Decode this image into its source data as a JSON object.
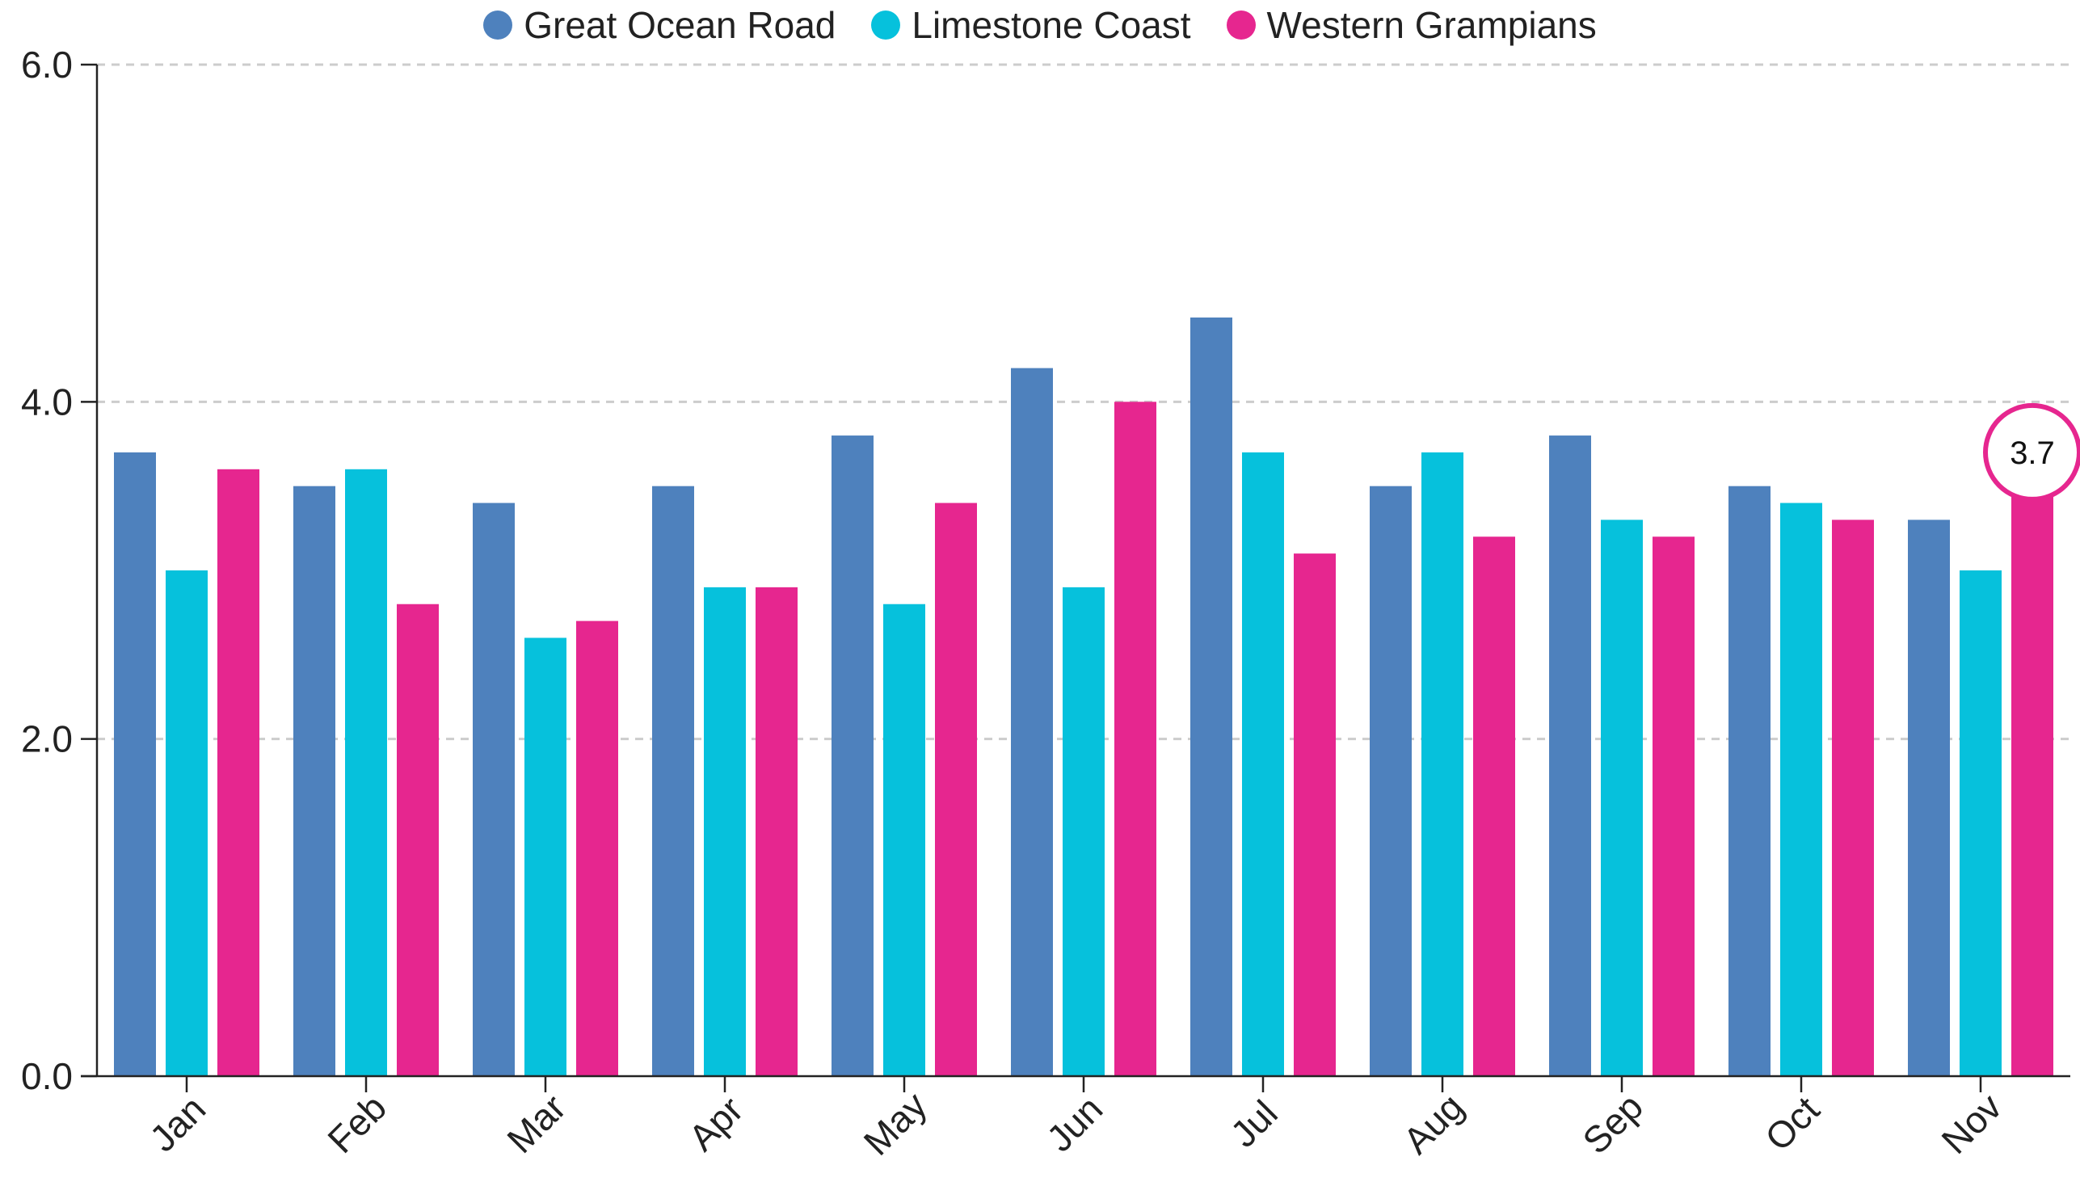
{
  "chart_data": {
    "type": "bar",
    "categories": [
      "Jan",
      "Feb",
      "Mar",
      "Apr",
      "May",
      "Jun",
      "Jul",
      "Aug",
      "Sep",
      "Oct",
      "Nov"
    ],
    "series": [
      {
        "name": "Great Ocean Road",
        "color": "#4e81bd",
        "values": [
          3.7,
          3.5,
          3.4,
          3.5,
          3.8,
          4.2,
          4.5,
          3.5,
          3.8,
          3.5,
          3.3
        ]
      },
      {
        "name": "Limestone Coast",
        "color": "#06c1dc",
        "values": [
          3.0,
          3.6,
          2.6,
          2.9,
          2.8,
          2.9,
          3.7,
          3.7,
          3.3,
          3.4,
          3.0
        ]
      },
      {
        "name": "Western Grampians",
        "color": "#e6268f",
        "values": [
          3.6,
          2.8,
          2.7,
          2.9,
          3.4,
          4.0,
          3.1,
          3.2,
          3.2,
          3.3,
          3.7
        ]
      }
    ],
    "ylim": [
      0,
      6
    ],
    "yticks": [
      "0.0",
      "2.0",
      "4.0",
      "6.0"
    ],
    "grid": true,
    "legend": "top-center",
    "annotation": {
      "category": "Nov",
      "series": "Western Grampians",
      "label": "3.7"
    }
  }
}
